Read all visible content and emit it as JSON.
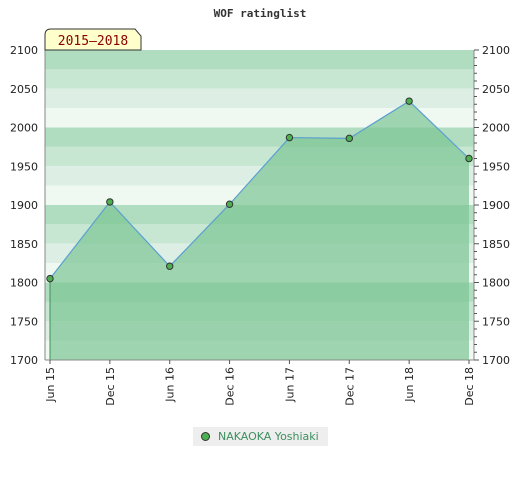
{
  "chart_data": {
    "type": "area",
    "title": "WOF ratinglist",
    "period_label": "2015–2018",
    "categories": [
      "Jun 15",
      "Dec 15",
      "Jun 16",
      "Dec 16",
      "Jun 17",
      "Dec 17",
      "Jun 18",
      "Dec 18"
    ],
    "series": [
      {
        "name": "NAKAOKA Yoshiaki",
        "values": [
          1805,
          1904,
          1821,
          1901,
          1987,
          1986,
          2034,
          1960
        ]
      }
    ],
    "yticks": [
      1700,
      1750,
      1800,
      1850,
      1900,
      1950,
      2000,
      2050,
      2100
    ],
    "ylim": [
      1700,
      2100
    ],
    "grid": true,
    "legend_position": "bottom",
    "colors": {
      "line": "#5aa0d0",
      "area": "#7cc594",
      "marker": "#4caf50",
      "period_bg": "#ffffcc"
    }
  }
}
